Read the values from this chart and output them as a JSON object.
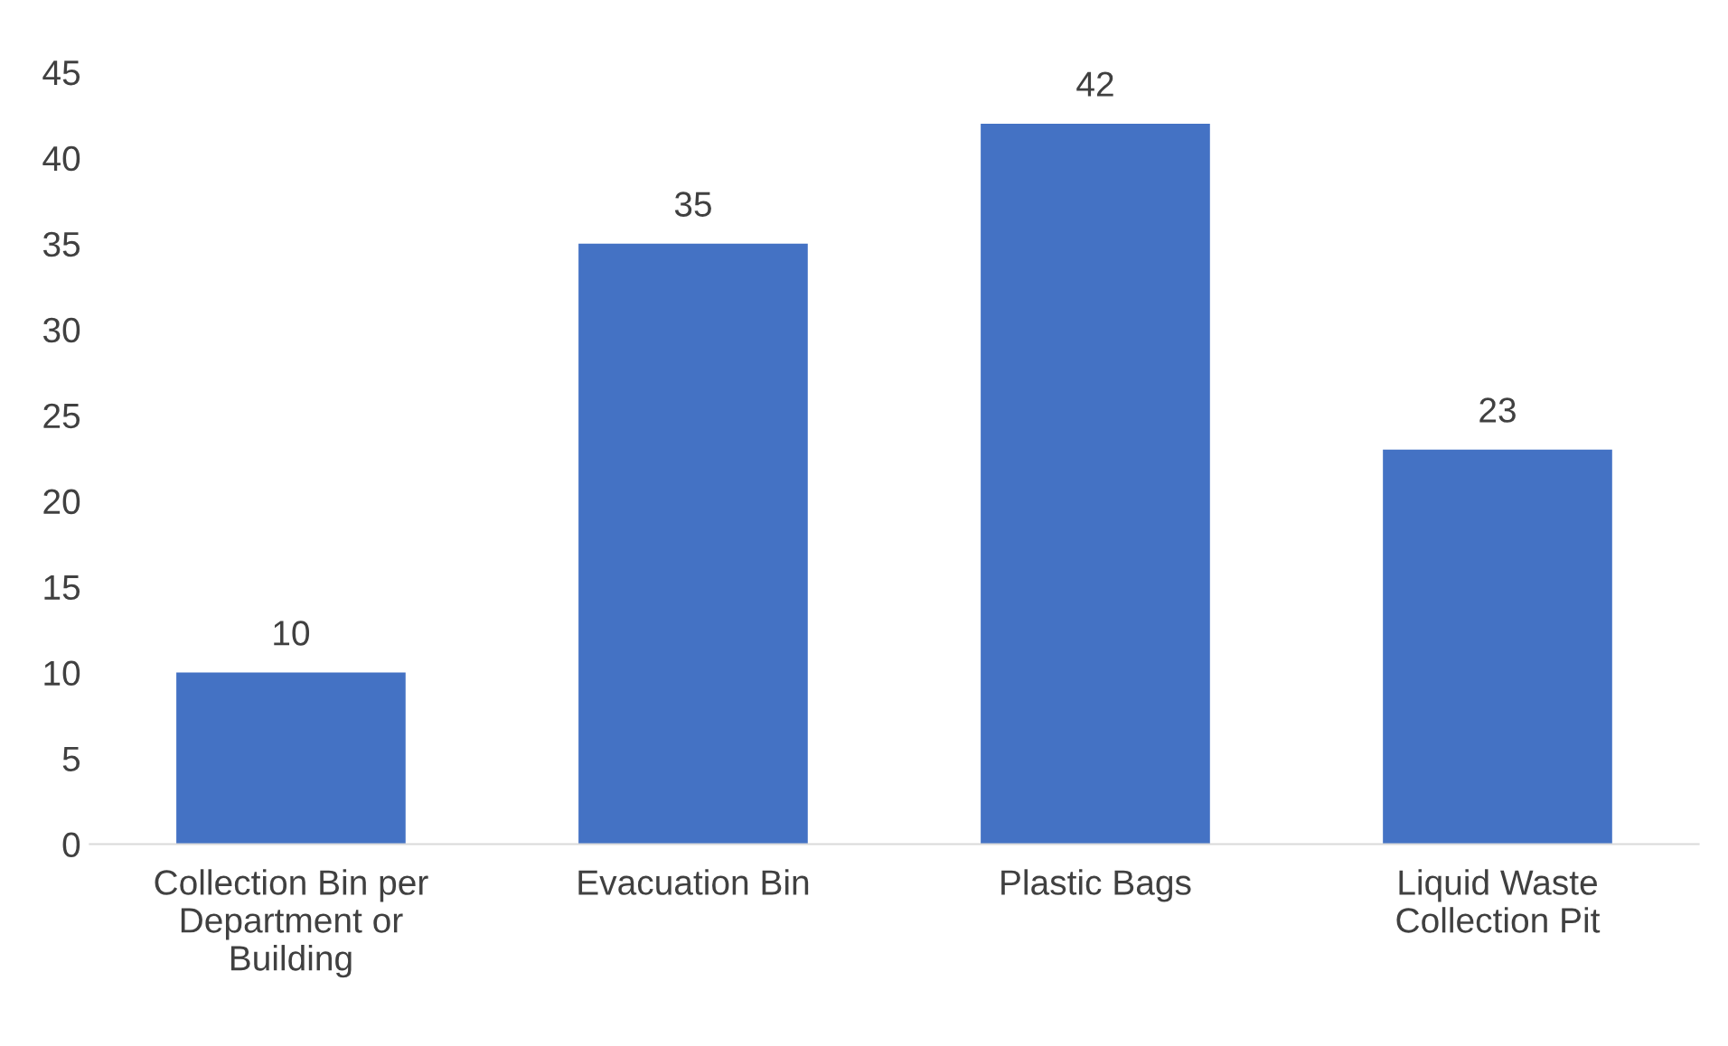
{
  "chart_data": {
    "type": "bar",
    "categories": [
      "Collection Bin per\nDepartment or\nBuilding",
      "Evacuation Bin",
      "Plastic Bags",
      "Liquid Waste\nCollection Pit"
    ],
    "values": [
      10,
      35,
      42,
      23
    ],
    "color": "#4472c4",
    "ylim": [
      0,
      45
    ],
    "yticks": [
      0,
      5,
      10,
      15,
      20,
      25,
      30,
      35,
      40,
      45
    ],
    "data_labels": true,
    "grid": false,
    "legend": false
  }
}
